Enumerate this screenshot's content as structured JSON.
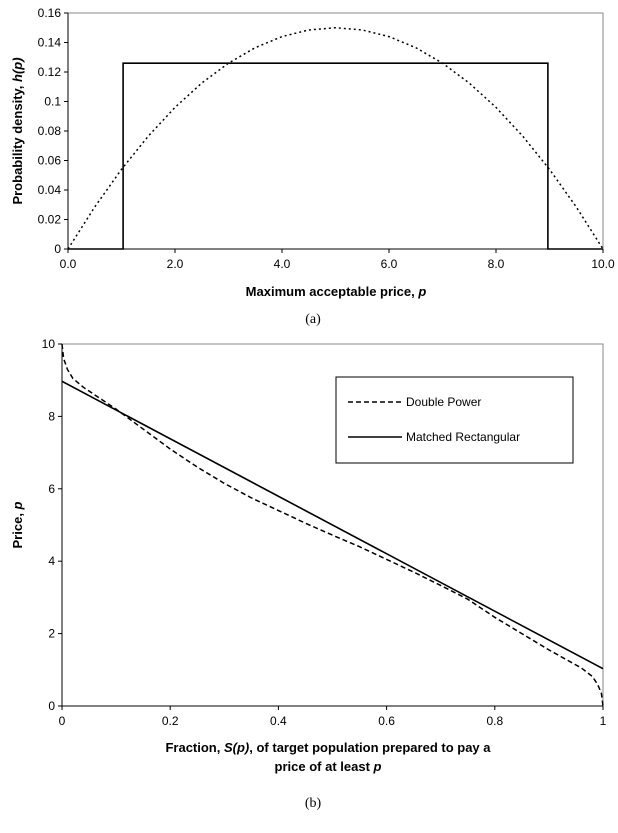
{
  "chart_data": [
    {
      "type": "line",
      "panel_label": "(a)",
      "xlabel_text": "Maximum acceptable price, ",
      "xlabel_italic": "p",
      "ylabel_text": "Probability density, ",
      "ylabel_italic": "h(p)",
      "xlim": [
        0,
        10
      ],
      "ylim": [
        0,
        0.16
      ],
      "xticks": [
        0,
        2,
        4,
        6,
        8,
        10
      ],
      "xtick_labels": [
        "0.0",
        "2.0",
        "4.0",
        "6.0",
        "8.0",
        "10.0"
      ],
      "yticks": [
        0,
        0.02,
        0.04,
        0.06,
        0.08,
        0.1,
        0.12,
        0.14,
        0.16
      ],
      "ytick_labels": [
        "0",
        "0.02",
        "0.04",
        "0.06",
        "0.08",
        "0.1",
        "0.12",
        "0.14",
        "0.16"
      ],
      "grid": false,
      "series": [
        {
          "style": "dotted",
          "x": [
            0,
            0.5,
            1,
            1.5,
            2,
            2.5,
            3,
            3.5,
            4,
            4.5,
            5,
            5.5,
            6,
            6.5,
            7,
            7.5,
            8,
            8.5,
            9,
            9.5,
            10
          ],
          "y": [
            0,
            0.0285,
            0.054,
            0.0765,
            0.096,
            0.1125,
            0.126,
            0.1365,
            0.144,
            0.1485,
            0.15,
            0.1485,
            0.144,
            0.1365,
            0.126,
            0.1125,
            0.096,
            0.0765,
            0.054,
            0.0285,
            0
          ]
        },
        {
          "style": "solid",
          "x": [
            0,
            1.03,
            1.03,
            8.97,
            8.97,
            10
          ],
          "y": [
            0,
            0,
            0.126,
            0.126,
            0,
            0
          ]
        }
      ]
    },
    {
      "type": "line",
      "panel_label": "(b)",
      "xlabel_line1_text": "Fraction, ",
      "xlabel_line1_italic": "S(p)",
      "xlabel_line1_rest": ", of target population prepared to pay a",
      "xlabel_line2_text": "price of at least ",
      "xlabel_line2_italic": "p",
      "ylabel_text": "Price, ",
      "ylabel_italic": "p",
      "xlim": [
        0,
        1
      ],
      "ylim": [
        0,
        10
      ],
      "xticks": [
        0,
        0.2,
        0.4,
        0.6,
        0.8,
        1
      ],
      "xtick_labels": [
        "0",
        "0.2",
        "0.4",
        "0.6",
        "0.8",
        "1"
      ],
      "yticks": [
        0,
        2,
        4,
        6,
        8,
        10
      ],
      "ytick_labels": [
        "0",
        "2",
        "4",
        "6",
        "8",
        "10"
      ],
      "grid": false,
      "legend": "top-right",
      "series": [
        {
          "name": "Double Power",
          "style": "dashed",
          "x": [
            0,
            0.003,
            0.01,
            0.02,
            0.04,
            0.07,
            0.1,
            0.15,
            0.2,
            0.25,
            0.3,
            0.35,
            0.4,
            0.45,
            0.5,
            0.55,
            0.6,
            0.65,
            0.7,
            0.75,
            0.8,
            0.85,
            0.9,
            0.93,
            0.96,
            0.98,
            0.99,
            0.997,
            1
          ],
          "y": [
            10,
            9.6,
            9.3,
            9.05,
            8.8,
            8.5,
            8.2,
            7.65,
            7.1,
            6.6,
            6.15,
            5.75,
            5.4,
            5.05,
            4.72,
            4.4,
            4.05,
            3.7,
            3.33,
            2.95,
            2.45,
            2.0,
            1.55,
            1.3,
            1.05,
            0.82,
            0.6,
            0.35,
            0
          ]
        },
        {
          "name": "Matched Rectangular",
          "style": "solid",
          "x": [
            0,
            1
          ],
          "y": [
            8.97,
            1.03
          ]
        }
      ]
    }
  ]
}
